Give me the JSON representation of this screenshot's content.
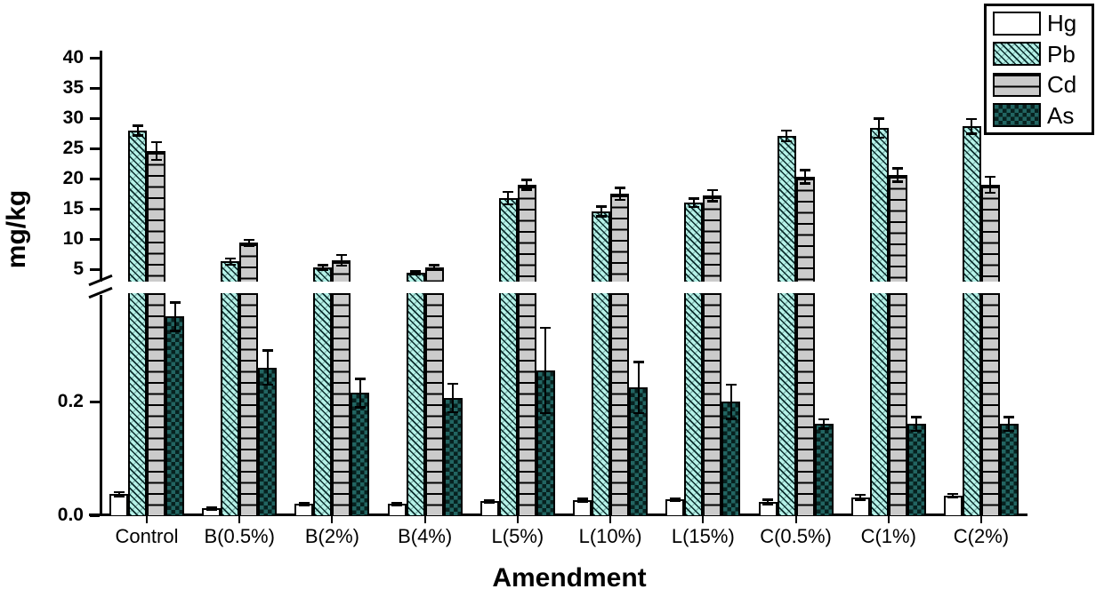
{
  "chart_data": {
    "type": "bar",
    "title": "",
    "xlabel": "Amendment",
    "ylabel": "mg/kg",
    "grid": false,
    "legend_position": "top-right",
    "categories": [
      "Control",
      "B(0.5%)",
      "B(2%)",
      "B(4%)",
      "L(5%)",
      "L(10%)",
      "L(15%)",
      "C(0.5%)",
      "C(1%)",
      "C(2%)"
    ],
    "series": [
      {
        "name": "Hg",
        "pattern": "plain-white",
        "values": [
          0.037,
          0.012,
          0.02,
          0.02,
          0.025,
          0.027,
          0.028,
          0.024,
          0.032,
          0.035
        ],
        "errors": [
          0.004,
          0.002,
          0.002,
          0.002,
          0.002,
          0.002,
          0.002,
          0.004,
          0.004,
          0.003
        ]
      },
      {
        "name": "Pb",
        "pattern": "diagonal-hatch",
        "values": [
          28.0,
          6.3,
          5.3,
          4.4,
          16.8,
          14.6,
          16.0,
          27.1,
          28.4,
          28.7
        ],
        "errors": [
          0.8,
          0.5,
          0.4,
          0.25,
          1.0,
          0.8,
          0.7,
          0.9,
          1.6,
          1.2
        ]
      },
      {
        "name": "Cd",
        "pattern": "horizontal-lines",
        "values": [
          24.6,
          9.4,
          6.5,
          5.3,
          19.0,
          17.5,
          17.2,
          20.3,
          20.6,
          19.0
        ],
        "errors": [
          1.5,
          0.5,
          0.9,
          0.4,
          0.8,
          1.0,
          0.9,
          1.1,
          1.1,
          1.3
        ]
      },
      {
        "name": "As",
        "pattern": "dark-checker",
        "values": [
          0.35,
          0.26,
          0.215,
          0.207,
          0.255,
          0.225,
          0.2,
          0.161,
          0.161,
          0.161
        ],
        "errors": [
          0.025,
          0.03,
          0.025,
          0.025,
          0.075,
          0.045,
          0.03,
          0.008,
          0.012,
          0.012
        ]
      }
    ],
    "y_axis": {
      "broken": true,
      "upper_ticks": [
        5,
        10,
        15,
        20,
        25,
        30,
        35,
        40
      ],
      "lower_ticks": [
        {
          "value": 0.0,
          "label": "0.0"
        },
        {
          "value": 0.2,
          "label": "0.2"
        }
      ],
      "upper_range": [
        3,
        41
      ],
      "lower_range": [
        0,
        0.39
      ]
    },
    "colors": {
      "hg_fill": "#ffffff",
      "pb_fill": "#b5f1e7",
      "pb_hatch": "#0b2e2e",
      "cd_fill": "#cbcbcb",
      "cd_line": "#000000",
      "as_fill": "#226562",
      "as_check": "#07211f",
      "axis": "#000000"
    }
  }
}
